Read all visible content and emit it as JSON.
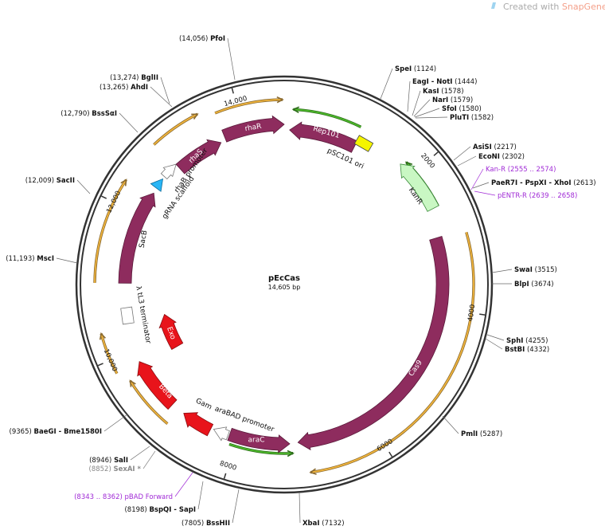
{
  "watermark": {
    "prefix": "Created with",
    "brand": "SnapGene®"
  },
  "plasmid": {
    "name": "pEcCas",
    "size": "14,605 bp"
  },
  "sites": [
    {
      "name": "PfoI",
      "position": "(14,056)"
    },
    {
      "name": "BglII",
      "position": "(13,274)"
    },
    {
      "name": "AhdI",
      "position": "(13,265)"
    },
    {
      "name": "BssSαI",
      "position": "(12,790)"
    },
    {
      "name": "SacII",
      "position": "(12,009)"
    },
    {
      "name": "MscI",
      "position": "(11,193)"
    },
    {
      "name": "BaeGI  - Bme1580I",
      "position": "(9365)"
    },
    {
      "name": "SalI",
      "position": "(8946)"
    },
    {
      "name": "SexAI *",
      "position": "(8852)"
    },
    {
      "name": "BspQI  - SapI",
      "position": "(8198)"
    },
    {
      "name": "BssHII",
      "position": "(7805)"
    },
    {
      "name": "XbaI",
      "position": "(7132)"
    },
    {
      "name": "SpeI",
      "position": "(1124)"
    },
    {
      "name": "EagI  - NotI",
      "position": "(1444)"
    },
    {
      "name": "KasI",
      "position": "(1578)"
    },
    {
      "name": "NarI",
      "position": "(1579)"
    },
    {
      "name": "SfoI",
      "position": "(1580)"
    },
    {
      "name": "PluTI",
      "position": "(1582)"
    },
    {
      "name": "AsiSI",
      "position": "(2217)"
    },
    {
      "name": "EcoNI",
      "position": "(2302)"
    },
    {
      "name": "PaeR7I  - PspXI  - XhoI",
      "position": "(2613)"
    },
    {
      "name": "SwaI",
      "position": "(3515)"
    },
    {
      "name": "BlpI",
      "position": "(3674)"
    },
    {
      "name": "SphI",
      "position": "(4255)"
    },
    {
      "name": "BstBI",
      "position": "(4332)"
    },
    {
      "name": "PmlI",
      "position": "(5287)"
    }
  ],
  "primers": [
    {
      "name": "Kan-R",
      "position": "(2555 .. 2574)"
    },
    {
      "name": "pENTR-R",
      "position": "(2639 .. 2658)"
    },
    {
      "name": "pBAD Forward",
      "position": "(8343 .. 8362)"
    }
  ],
  "features": [
    {
      "label": "rhaR"
    },
    {
      "label": "Rep101"
    },
    {
      "label": "pSC101 ori"
    },
    {
      "label": "KanR"
    },
    {
      "label": "Cas9"
    },
    {
      "label": "araC"
    },
    {
      "label": "araBAD promoter"
    },
    {
      "label": "Gam"
    },
    {
      "label": "Beta"
    },
    {
      "label": "Exo"
    },
    {
      "label": "λ tL3 terminator"
    },
    {
      "label": "SacB"
    },
    {
      "label": "gRNA scaffold"
    },
    {
      "label": "rhaB promoter"
    },
    {
      "label": "rhaS"
    }
  ],
  "ticks": [
    "2000",
    "4000",
    "6000",
    "8000",
    "10,000",
    "12,000",
    "14,000"
  ]
}
